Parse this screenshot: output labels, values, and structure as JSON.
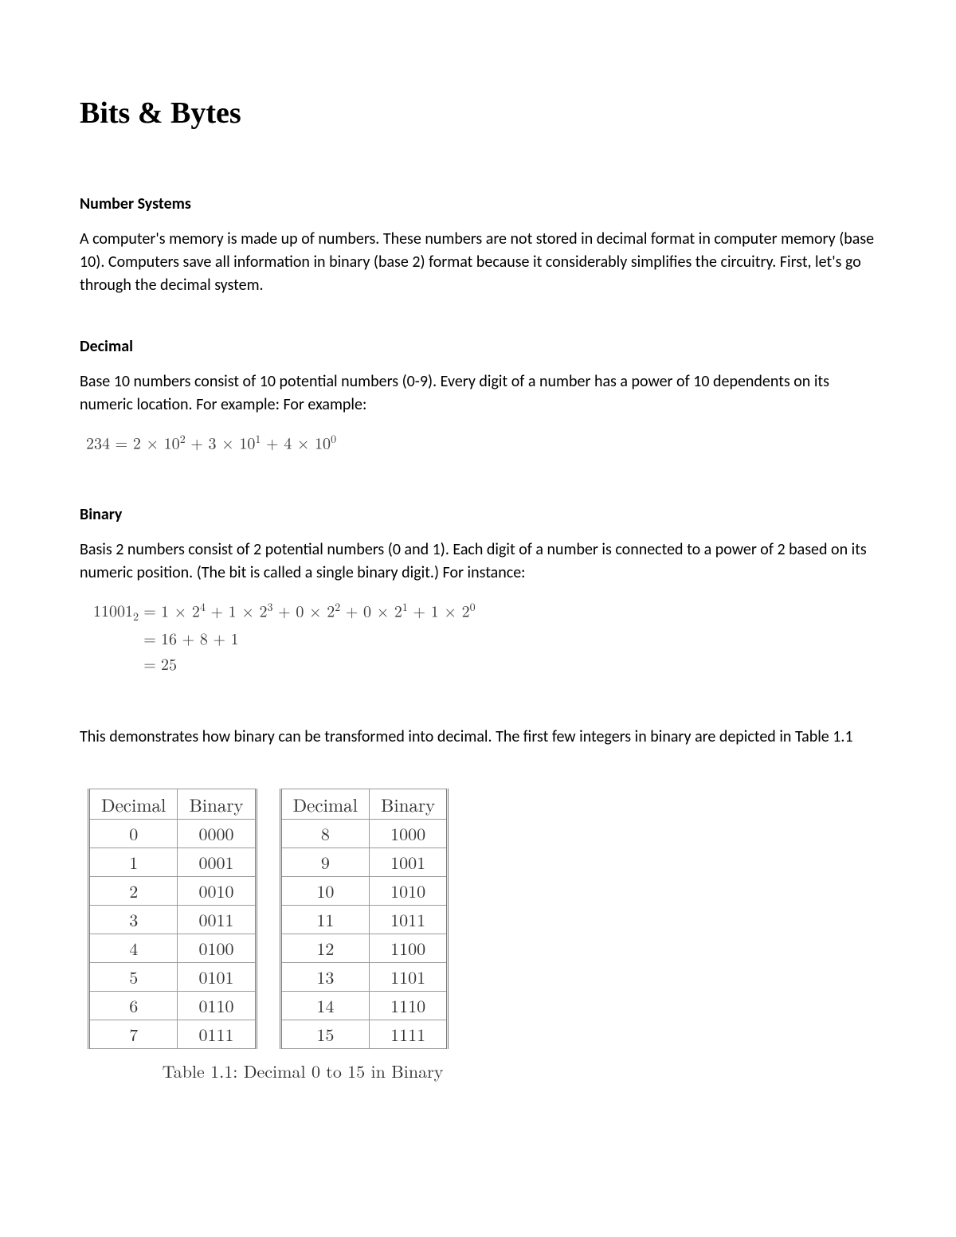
{
  "title": "Bits & Bytes",
  "sections": {
    "number_systems": {
      "heading": "Number Systems",
      "body": "A computer's memory is made up of numbers. These numbers are not stored in decimal format in computer memory (base 10). Computers save all information in binary (base 2) format because it considerably simplifies the circuitry. First, let's go through the decimal system."
    },
    "decimal": {
      "heading": "Decimal",
      "body": "Base 10 numbers consist of 10 potential numbers (0-9). Every digit of a number has a power of 10 dependents on its numeric location. For example: For example:",
      "formula_lhs": "234",
      "formula_rhs": "2 × 10² + 3 × 10¹ + 4 × 10⁰"
    },
    "binary": {
      "heading": "Binary",
      "body": "Basis 2 numbers consist of 2 potential numbers (0 and 1). Each digit of a number is connected to a power of 2 based on its numeric position. (The bit is called a single binary digit.) For instance:",
      "formula_lhs": "11001",
      "formula_lhs_sub": "2",
      "formula_line1": "1 × 2⁴ + 1 × 2³ + 0 × 2² + 0 × 2¹ + 1 × 2⁰",
      "formula_line2": "16 + 8 + 1",
      "formula_line3": "25",
      "after": "This demonstrates how binary can be transformed into decimal. The first few integers in binary are depicted in Table 1.1"
    }
  },
  "table": {
    "caption": "Table 1.1: Decimal 0 to 15 in Binary",
    "headers": [
      "Decimal",
      "Binary",
      "Decimal",
      "Binary"
    ],
    "rows": [
      [
        "0",
        "0000",
        "8",
        "1000"
      ],
      [
        "1",
        "0001",
        "9",
        "1001"
      ],
      [
        "2",
        "0010",
        "10",
        "1010"
      ],
      [
        "3",
        "0011",
        "11",
        "1011"
      ],
      [
        "4",
        "0100",
        "12",
        "1100"
      ],
      [
        "5",
        "0101",
        "13",
        "1101"
      ],
      [
        "6",
        "0110",
        "14",
        "1110"
      ],
      [
        "7",
        "0111",
        "15",
        "1111"
      ]
    ]
  },
  "colors": {
    "text": "#000000",
    "formula": "#3a3a3a",
    "border": "#9a9a9a",
    "background": "#ffffff"
  },
  "fonts": {
    "title_family": "Times New Roman",
    "title_size_pt": 28,
    "body_family": "Calibri",
    "body_size_pt": 15,
    "math_family": "Latin Modern",
    "table_size_pt": 16
  }
}
